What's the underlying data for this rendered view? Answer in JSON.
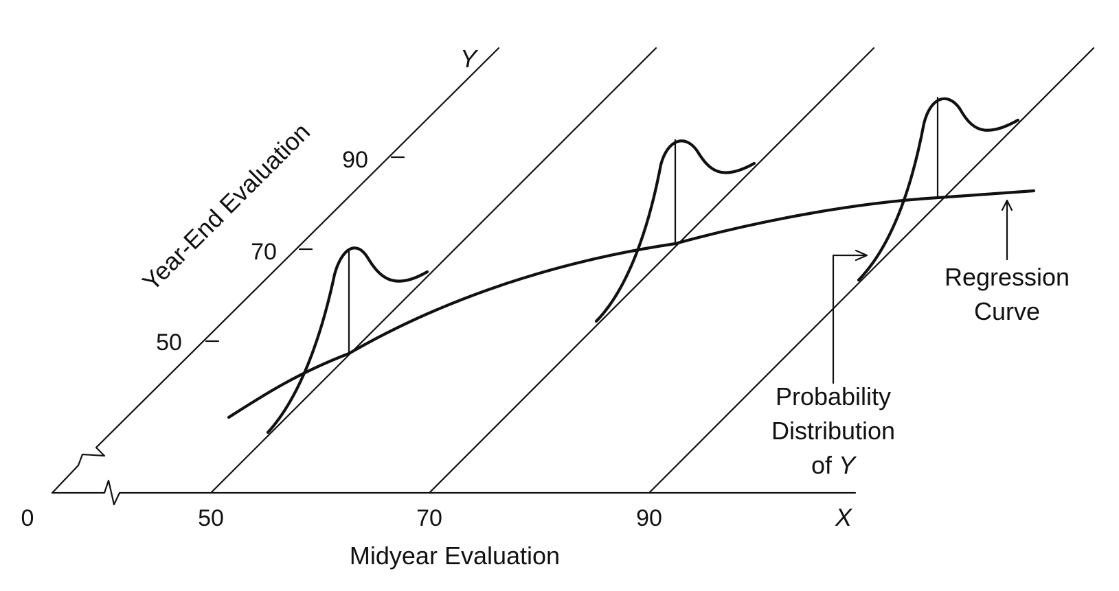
{
  "x_axis": {
    "variable": "X",
    "label": "Midyear Evaluation",
    "ticks": [
      "0",
      "50",
      "70",
      "90"
    ]
  },
  "y_axis": {
    "variable": "Y",
    "label": "Year-End Evaluation",
    "ticks": [
      "50",
      "70",
      "90"
    ]
  },
  "annotations": {
    "regression_curve": [
      "Regression",
      "Curve"
    ],
    "probability_distribution": [
      "Probability",
      "Distribution",
      "of Y"
    ]
  }
}
